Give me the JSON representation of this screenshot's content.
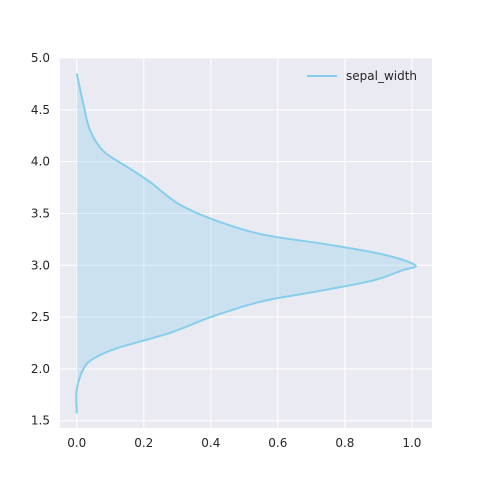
{
  "chart_data": {
    "type": "area",
    "orientation": "vertical-density",
    "series": [
      {
        "name": "sepal_width",
        "density": [
          0.0,
          0.0,
          0.02,
          0.05,
          0.12,
          0.28,
          0.4,
          0.55,
          0.72,
          0.88,
          0.97,
          1.01,
          0.92,
          0.75,
          0.55,
          0.4,
          0.3,
          0.22,
          0.15,
          0.08,
          0.04,
          0.02,
          0.0
        ],
        "y": [
          1.57,
          1.8,
          2.0,
          2.1,
          2.2,
          2.35,
          2.5,
          2.65,
          2.75,
          2.85,
          2.95,
          3.0,
          3.1,
          3.2,
          3.3,
          3.45,
          3.6,
          3.8,
          3.95,
          4.1,
          4.3,
          4.55,
          4.85
        ]
      }
    ],
    "xlim": [
      -0.05,
      1.06
    ],
    "ylim": [
      1.43,
      5.0
    ],
    "x_ticks": [
      "0.0",
      "0.2",
      "0.4",
      "0.6",
      "0.8",
      "1.0"
    ],
    "y_ticks": [
      "1.5",
      "2.0",
      "2.5",
      "3.0",
      "3.5",
      "4.0",
      "4.5",
      "5.0"
    ],
    "legend": {
      "position": "top-right",
      "entries": [
        "sepal_width"
      ]
    },
    "grid": true,
    "colors": {
      "line": "#87ceeb",
      "fill": "#87ceeb",
      "background": "#eaeaf2",
      "grid": "#ffffff"
    }
  }
}
